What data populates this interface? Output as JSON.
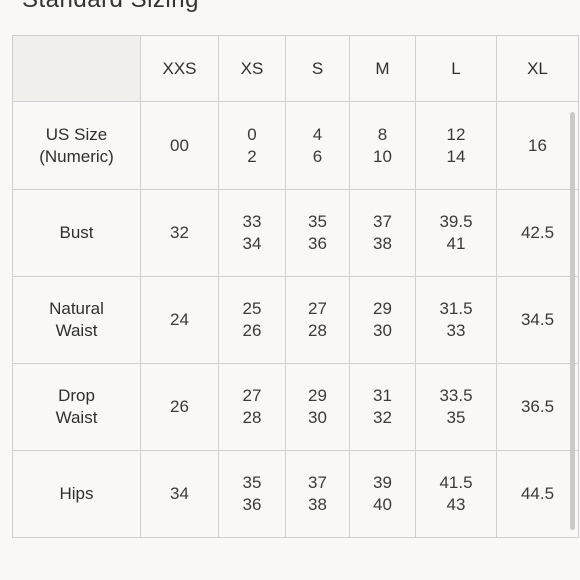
{
  "title": "Standard Sizing",
  "columns": [
    "XXS",
    "XS",
    "S",
    "M",
    "L",
    "XL"
  ],
  "rows": [
    {
      "label": "US Size\n(Numeric)",
      "values": [
        "00",
        "0\n2",
        "4\n6",
        "8\n10",
        "12\n14",
        "16"
      ]
    },
    {
      "label": "Bust",
      "values": [
        "32",
        "33\n34",
        "35\n36",
        "37\n38",
        "39.5\n41",
        "42.5"
      ]
    },
    {
      "label": "Natural\nWaist",
      "values": [
        "24",
        "25\n26",
        "27\n28",
        "29\n30",
        "31.5\n33",
        "34.5"
      ]
    },
    {
      "label": "Drop\nWaist",
      "values": [
        "26",
        "27\n28",
        "29\n30",
        "31\n32",
        "33.5\n35",
        "36.5"
      ]
    },
    {
      "label": "Hips",
      "values": [
        "34",
        "35\n36",
        "37\n38",
        "39\n40",
        "41.5\n43",
        "44.5"
      ]
    }
  ]
}
